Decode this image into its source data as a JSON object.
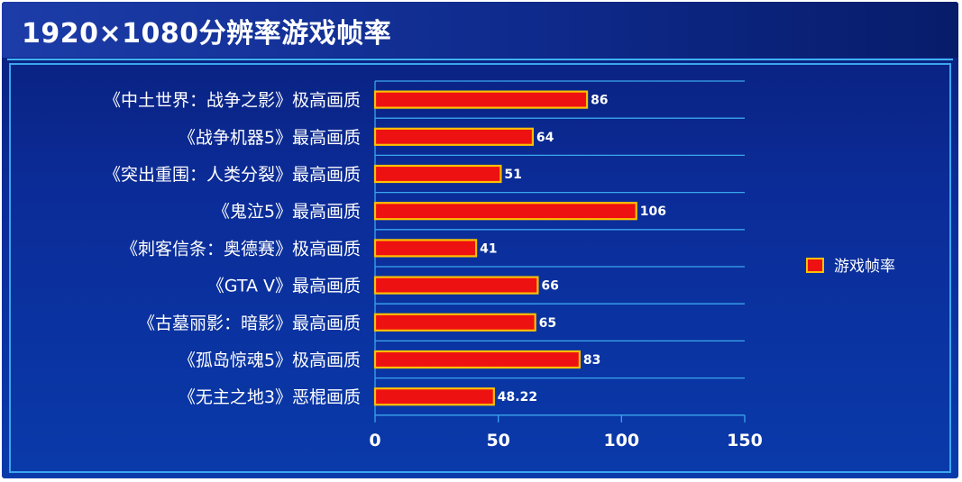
{
  "chart_data": {
    "type": "bar",
    "orientation": "horizontal",
    "title": "1920×1080分辨率游戏帧率",
    "categories": [
      "《中土世界：战争之影》极高画质",
      "《战争机器5》最高画质",
      "《突出重围：人类分裂》最高画质",
      "《鬼泣5》最高画质",
      "《刺客信条：奥德赛》极高画质",
      "《GTA V》最高画质",
      "《古墓丽影：暗影》最高画质",
      "《孤岛惊魂5》极高画质",
      "《无主之地3》恶棍画质"
    ],
    "series": [
      {
        "name": "游戏帧率",
        "values": [
          86,
          64,
          51,
          106,
          41,
          66,
          65,
          83,
          48.22
        ],
        "value_labels": [
          "86",
          "64",
          "51",
          "106",
          "41",
          "66",
          "65",
          "83",
          "48.22"
        ]
      }
    ],
    "xlim": [
      0,
      150
    ],
    "xticks": [
      "0",
      "50",
      "100",
      "150"
    ],
    "grid": true,
    "legend": "right",
    "colors": {
      "bar_fill": "#ee1111",
      "bar_edge": "#ffc000",
      "grid": "#3aa6ee",
      "text": "#ffffff"
    }
  }
}
